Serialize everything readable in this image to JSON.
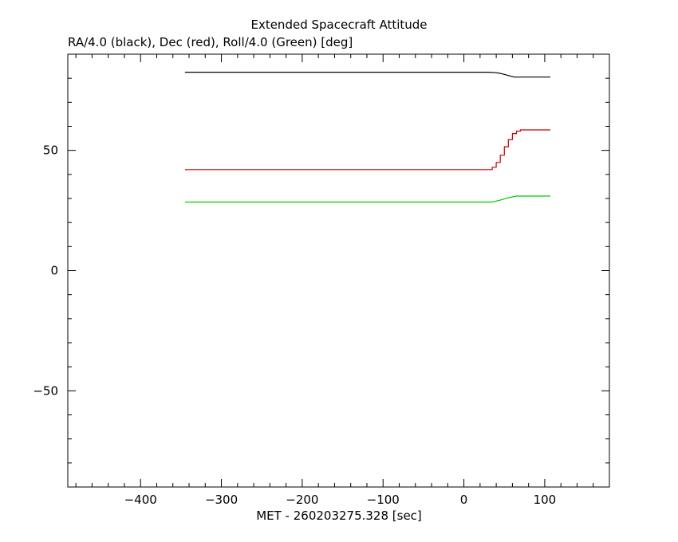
{
  "chart_data": {
    "type": "line",
    "title": "Extended Spacecraft Attitude",
    "subtitle": "RA/4.0 (black), Dec (red), Roll/4.0 (Green) [deg]",
    "xlabel": "MET - 260203275.328 [sec]",
    "ylabel": "",
    "xlim": [
      -490,
      180
    ],
    "ylim": [
      -90,
      90
    ],
    "xticks": [
      -400,
      -300,
      -200,
      -100,
      0,
      100
    ],
    "xtick_labels": [
      "−400",
      "−300",
      "−200",
      "−100",
      "0",
      "100"
    ],
    "yticks": [
      -50,
      0,
      50
    ],
    "ytick_labels": [
      "−50",
      "0",
      "50"
    ],
    "grid": false,
    "series": [
      {
        "name": "RA/4.0",
        "color": "#000000",
        "x": [
          -345,
          30,
          40,
          45,
          50,
          55,
          60,
          62,
          107
        ],
        "y": [
          82.5,
          82.5,
          82.3,
          82.0,
          81.6,
          81.1,
          80.7,
          80.5,
          80.5
        ]
      },
      {
        "name": "Dec",
        "color": "#cc0000",
        "x": [
          -345,
          30,
          35,
          40,
          45,
          50,
          55,
          60,
          65,
          70,
          75,
          107
        ],
        "y": [
          42.0,
          42.0,
          43.0,
          45.0,
          48.0,
          51.5,
          54.5,
          57.0,
          58.0,
          58.5,
          58.5,
          58.5
        ],
        "step": true
      },
      {
        "name": "Roll/4.0",
        "color": "#00cc00",
        "x": [
          -345,
          35,
          45,
          55,
          65,
          107
        ],
        "y": [
          28.5,
          28.5,
          29.3,
          30.3,
          31.0,
          31.0
        ]
      }
    ]
  }
}
